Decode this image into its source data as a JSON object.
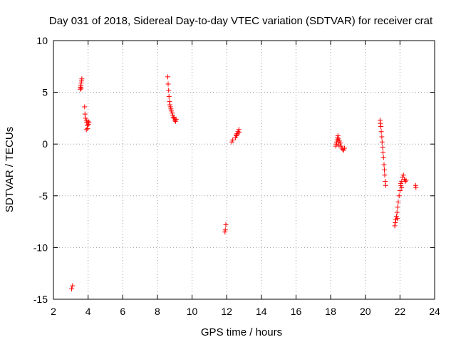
{
  "chart_data": {
    "type": "scatter",
    "title": "Day 031 of 2018, Sidereal Day-to-day VTEC variation (SDTVAR) for receiver crat",
    "xlabel": "GPS time / hours",
    "ylabel": "SDTVAR / TECUs",
    "xlim": [
      2,
      24
    ],
    "ylim": [
      -15,
      10
    ],
    "xticks": [
      2,
      4,
      6,
      8,
      10,
      12,
      14,
      16,
      18,
      20,
      22,
      24
    ],
    "yticks": [
      -15,
      -10,
      -5,
      0,
      5,
      10
    ],
    "grid": true,
    "marker": "+",
    "color": "#ff0000",
    "series": [
      {
        "name": "SDTVAR",
        "points": [
          [
            3.05,
            -14.0
          ],
          [
            3.1,
            -13.7
          ],
          [
            3.55,
            5.3
          ],
          [
            3.56,
            5.5
          ],
          [
            3.58,
            5.7
          ],
          [
            3.6,
            5.9
          ],
          [
            3.62,
            6.1
          ],
          [
            3.64,
            6.3
          ],
          [
            3.6,
            5.4
          ],
          [
            3.8,
            3.6
          ],
          [
            3.82,
            2.9
          ],
          [
            3.85,
            2.5
          ],
          [
            3.9,
            2.3
          ],
          [
            3.92,
            2.1
          ],
          [
            3.95,
            1.8
          ],
          [
            3.97,
            1.5
          ],
          [
            4.0,
            2.2
          ],
          [
            4.02,
            1.9
          ],
          [
            4.05,
            2.1
          ],
          [
            3.9,
            1.4
          ],
          [
            8.6,
            6.5
          ],
          [
            8.62,
            5.8
          ],
          [
            8.65,
            5.2
          ],
          [
            8.67,
            4.6
          ],
          [
            8.7,
            4.1
          ],
          [
            8.72,
            3.8
          ],
          [
            8.75,
            3.6
          ],
          [
            8.78,
            3.4
          ],
          [
            8.8,
            3.2
          ],
          [
            8.85,
            3.0
          ],
          [
            8.88,
            2.8
          ],
          [
            8.92,
            2.6
          ],
          [
            8.96,
            2.5
          ],
          [
            9.0,
            2.3
          ],
          [
            9.05,
            2.2
          ],
          [
            9.08,
            2.4
          ],
          [
            11.9,
            -8.5
          ],
          [
            11.92,
            -8.3
          ],
          [
            11.95,
            -7.8
          ],
          [
            12.3,
            0.2
          ],
          [
            12.35,
            0.4
          ],
          [
            12.5,
            0.6
          ],
          [
            12.55,
            0.8
          ],
          [
            12.6,
            1.0
          ],
          [
            12.65,
            1.2
          ],
          [
            12.7,
            1.4
          ],
          [
            12.72,
            1.1
          ],
          [
            12.58,
            0.9
          ],
          [
            18.3,
            -0.2
          ],
          [
            18.32,
            0.0
          ],
          [
            18.35,
            0.2
          ],
          [
            18.38,
            0.4
          ],
          [
            18.4,
            0.6
          ],
          [
            18.42,
            0.8
          ],
          [
            18.45,
            0.5
          ],
          [
            18.5,
            0.3
          ],
          [
            18.55,
            0.1
          ],
          [
            18.6,
            -0.2
          ],
          [
            18.65,
            -0.4
          ],
          [
            18.7,
            -0.5
          ],
          [
            18.75,
            -0.6
          ],
          [
            18.8,
            -0.4
          ],
          [
            18.48,
            -0.1
          ],
          [
            20.85,
            2.3
          ],
          [
            20.87,
            2.0
          ],
          [
            20.9,
            1.7
          ],
          [
            20.92,
            1.2
          ],
          [
            20.95,
            0.7
          ],
          [
            20.97,
            0.2
          ],
          [
            21.0,
            -0.3
          ],
          [
            21.02,
            -0.8
          ],
          [
            21.05,
            -1.3
          ],
          [
            21.08,
            -2.0
          ],
          [
            21.1,
            -2.5
          ],
          [
            21.12,
            -3.0
          ],
          [
            21.15,
            -3.6
          ],
          [
            21.18,
            -4.0
          ],
          [
            21.7,
            -7.9
          ],
          [
            21.73,
            -7.6
          ],
          [
            21.76,
            -7.3
          ],
          [
            21.8,
            -7.0
          ],
          [
            21.83,
            -6.6
          ],
          [
            21.86,
            -6.1
          ],
          [
            21.9,
            -5.6
          ],
          [
            21.95,
            -5.0
          ],
          [
            22.0,
            -4.5
          ],
          [
            22.05,
            -4.0
          ],
          [
            22.1,
            -3.6
          ],
          [
            22.15,
            -3.2
          ],
          [
            22.2,
            -3.0
          ],
          [
            22.25,
            -3.4
          ],
          [
            22.3,
            -3.6
          ],
          [
            22.35,
            -3.5
          ],
          [
            22.05,
            -3.8
          ],
          [
            22.1,
            -4.2
          ],
          [
            21.85,
            -7.2
          ],
          [
            22.9,
            -4.0
          ],
          [
            22.92,
            -4.2
          ]
        ]
      }
    ]
  }
}
